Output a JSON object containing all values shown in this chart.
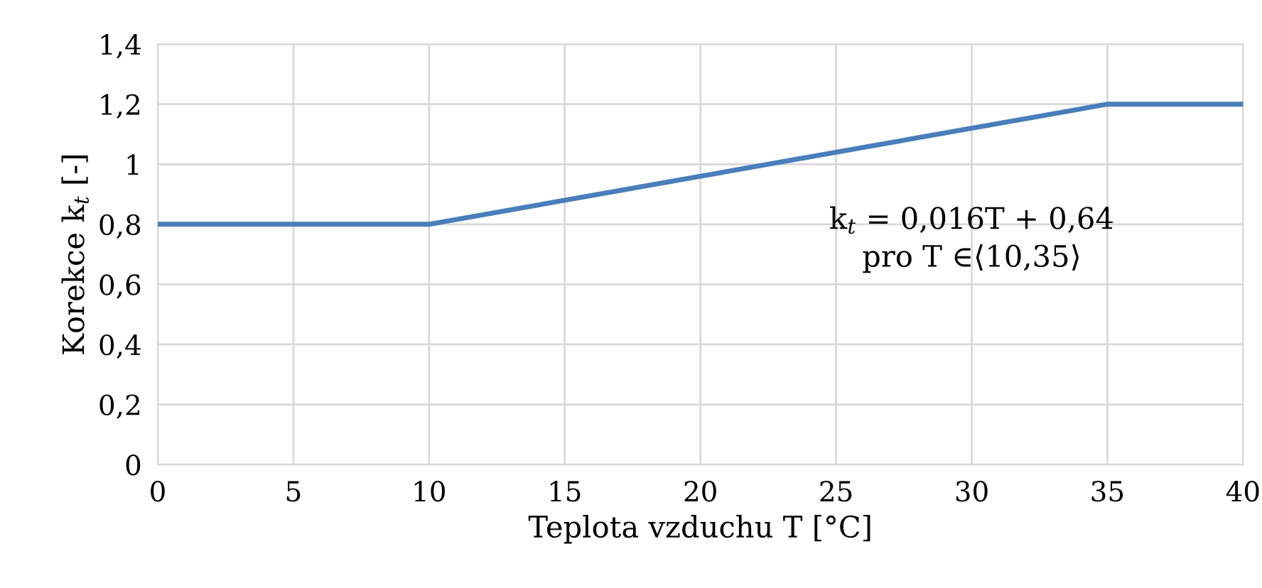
{
  "chart_data": {
    "type": "line",
    "xlabel": "Teplota vzduchu T [°C]",
    "ylabel": "Korekce k$_{t}$ [-]",
    "x": [
      0,
      10,
      35,
      40
    ],
    "series": [
      {
        "color": "#4a7ebb",
        "values": [
          0.8,
          0.8,
          1.2,
          1.2
        ]
      }
    ],
    "xlim": [
      0,
      40
    ],
    "xticks": [
      0,
      5,
      10,
      15,
      20,
      25,
      30,
      35,
      40
    ],
    "ylim": [
      0,
      1.4
    ],
    "yticks": [
      0,
      {
        "value": 0.2,
        "label": "0,2"
      },
      {
        "value": 0.4,
        "label": "0,4"
      },
      {
        "value": 0.6,
        "label": "0,6"
      },
      {
        "value": 0.8,
        "label": "0,8"
      },
      1,
      {
        "value": 1.2,
        "label": "1,2"
      },
      {
        "value": 1.4,
        "label": "1,4"
      }
    ],
    "grid": true,
    "marker": "none",
    "line_style": "solid",
    "legend": false,
    "annotations": [
      "k$_{t}$ = 0,016T + 0,64",
      "pro T ∈⟨10,35⟩"
    ]
  }
}
